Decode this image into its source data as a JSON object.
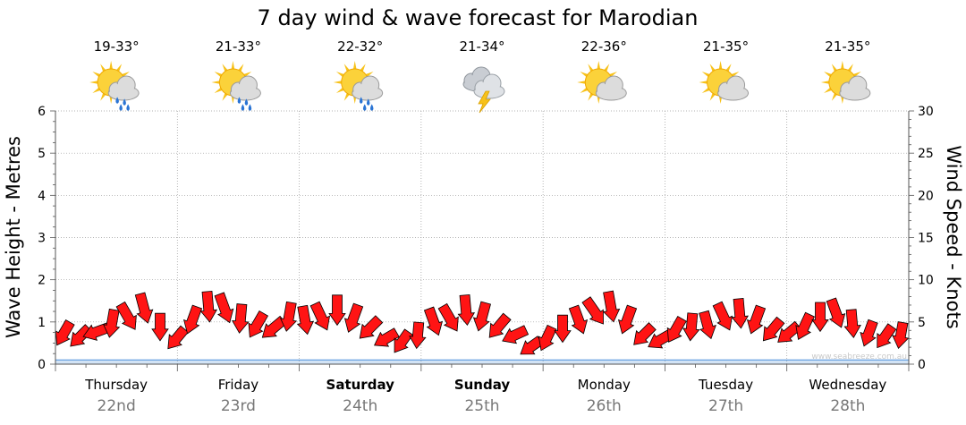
{
  "chart_data": {
    "type": "line",
    "title": "7 day wind & wave forecast for Marodian",
    "ylabel": "Wave Height - Metres",
    "y2label": "Wind Speed - Knots",
    "ylim": [
      0,
      6
    ],
    "y2lim": [
      0,
      30
    ],
    "yticks": [
      "0",
      "1",
      "2",
      "3",
      "4",
      "5",
      "6"
    ],
    "y2ticks": [
      "0",
      "5",
      "10",
      "15",
      "20",
      "25",
      "30"
    ],
    "grid": true,
    "wave_color": "#4a90d9",
    "arrow_color": "#ff1414",
    "days": [
      {
        "name": "Thursday",
        "date": "22nd",
        "temp": "19-33°",
        "icon": "sun-cloud-rain-icon",
        "bold": false
      },
      {
        "name": "Friday",
        "date": "23rd",
        "temp": "21-33°",
        "icon": "sun-cloud-rain-icon",
        "bold": false
      },
      {
        "name": "Saturday",
        "date": "24th",
        "temp": "22-32°",
        "icon": "sun-cloud-rain-icon",
        "bold": true
      },
      {
        "name": "Sunday",
        "date": "25th",
        "temp": "21-34°",
        "icon": "storm-cloud-icon",
        "bold": true
      },
      {
        "name": "Monday",
        "date": "26th",
        "temp": "22-36°",
        "icon": "sun-cloud-icon",
        "bold": false
      },
      {
        "name": "Tuesday",
        "date": "27th",
        "temp": "21-35°",
        "icon": "sun-cloud-icon",
        "bold": false
      },
      {
        "name": "Wednesday",
        "date": "28th",
        "temp": "21-35°",
        "icon": "sun-cloud-icon",
        "bold": false
      }
    ],
    "wave_height_m": [
      0.1,
      0.1,
      0.1,
      0.1,
      0.1,
      0.1,
      0.1,
      0.1
    ],
    "wind_knots": [
      3.6,
      3.2,
      3.8,
      4.8,
      5.6,
      6.6,
      4.4,
      3.0,
      5.2,
      6.8,
      6.6,
      5.4,
      4.6,
      4.2,
      5.6,
      5.2,
      5.6,
      6.4,
      5.4,
      4.2,
      3.0,
      2.6,
      3.4,
      5.0,
      5.4,
      6.4,
      5.6,
      4.4,
      3.4,
      2.0,
      3.0,
      4.2,
      5.2,
      6.2,
      6.8,
      5.2,
      3.4,
      2.8,
      4.0,
      4.4,
      4.6,
      5.6,
      6.0,
      5.2,
      4.0,
      3.6,
      4.4,
      5.6,
      6.0,
      4.8,
      3.6,
      3.2,
      3.4
    ],
    "wind_dir_deg": [
      120,
      135,
      160,
      100,
      60,
      75,
      90,
      130,
      110,
      85,
      70,
      95,
      120,
      140,
      100,
      80,
      65,
      90,
      110,
      135,
      150,
      125,
      95,
      70,
      60,
      85,
      105,
      130,
      155,
      145,
      115,
      90,
      70,
      55,
      80,
      110,
      135,
      150,
      120,
      95,
      75,
      65,
      85,
      110,
      130,
      140,
      115,
      90,
      70,
      85,
      110,
      125,
      100
    ],
    "watermark": "www.seabreeze.com.au"
  }
}
